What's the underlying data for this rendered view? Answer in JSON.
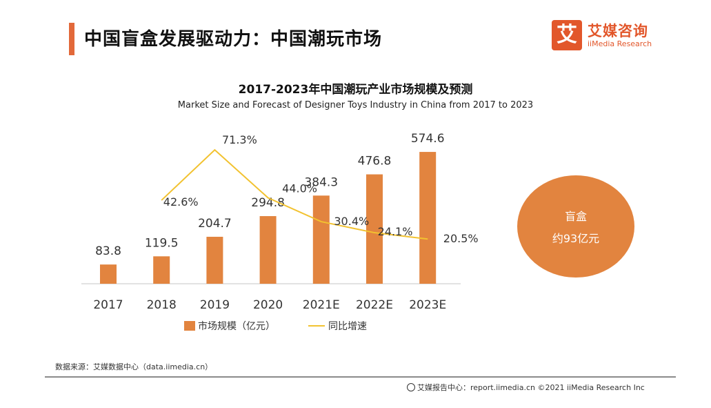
{
  "header": {
    "title": "中国盲盒发展驱动力：中国潮玩市场",
    "logo_mark": "艾",
    "logo_cn": "艾媒咨询",
    "logo_en": "iiMedia Research"
  },
  "chart_data": {
    "type": "bar+line",
    "title": "2017-2023年中国潮玩产业市场规模及预测",
    "subtitle": "Market Size and Forecast of Designer Toys Industry in China from 2017 to 2023",
    "categories": [
      "2017",
      "2018",
      "2019",
      "2020",
      "2021E",
      "2022E",
      "2023E"
    ],
    "series": [
      {
        "name": "市场规模（亿元）",
        "type": "bar",
        "values": [
          83.8,
          119.5,
          204.7,
          294.8,
          384.3,
          476.8,
          574.6
        ],
        "labels": [
          "83.8",
          "119.5",
          "204.7",
          "294.8",
          "384.3",
          "476.8",
          "574.6"
        ],
        "color": "#e2843f"
      },
      {
        "name": "同比增速",
        "type": "line",
        "values": [
          null,
          42.6,
          71.3,
          44.0,
          30.4,
          24.1,
          20.5
        ],
        "labels": [
          "",
          "42.6%",
          "71.3%",
          "44.0%",
          "30.4%",
          "24.1%",
          "20.5%"
        ],
        "color": "#f2c230"
      }
    ],
    "bar_ylim": [
      0,
      650
    ],
    "line_ylim": [
      -5,
      80
    ]
  },
  "callout": {
    "label": "盲盒",
    "value": "约93亿元",
    "color": "#e2843f"
  },
  "source": "数据来源：艾媒数据中心（data.iimedia.cn）",
  "footer": "艾媒报告中心：report.iimedia.cn   ©2021  iiMedia Research  Inc"
}
